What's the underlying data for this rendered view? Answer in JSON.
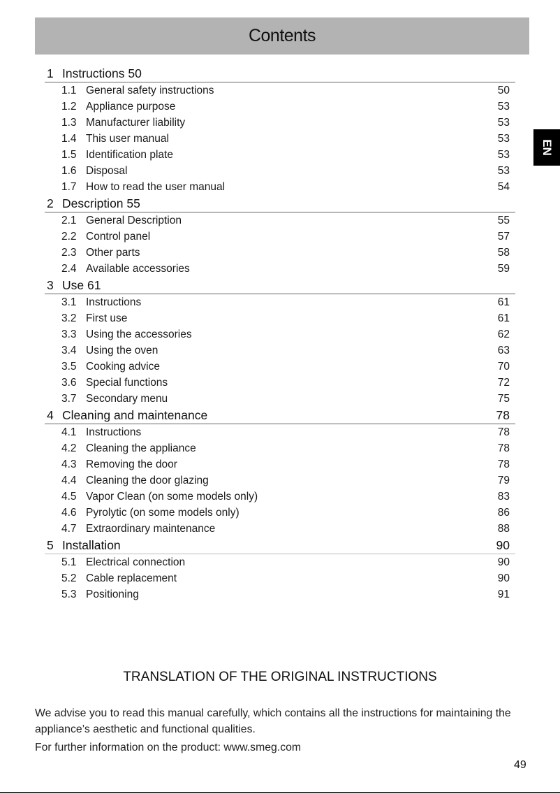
{
  "title": "Contents",
  "lang_tab": "EN",
  "sections": [
    {
      "num": "1",
      "title": "Instructions 50",
      "page": "",
      "entries": [
        {
          "num": "1.1",
          "title": "General safety instructions",
          "page": "50"
        },
        {
          "num": "1.2",
          "title": "Appliance purpose",
          "page": "53"
        },
        {
          "num": "1.3",
          "title": "Manufacturer liability",
          "page": "53"
        },
        {
          "num": "1.4",
          "title": "This user manual",
          "page": "53"
        },
        {
          "num": "1.5",
          "title": "Identification plate",
          "page": "53"
        },
        {
          "num": "1.6",
          "title": "Disposal",
          "page": "53"
        },
        {
          "num": "1.7",
          "title": "How to read the user manual",
          "page": "54"
        }
      ]
    },
    {
      "num": "2",
      "title": "Description 55",
      "page": "",
      "entries": [
        {
          "num": "2.1",
          "title": "General Description",
          "page": "55"
        },
        {
          "num": "2.2",
          "title": "Control panel",
          "page": "57"
        },
        {
          "num": "2.3",
          "title": "Other parts",
          "page": "58"
        },
        {
          "num": "2.4",
          "title": "Available accessories",
          "page": "59"
        }
      ]
    },
    {
      "num": "3",
      "title": "Use 61",
      "page": "",
      "entries": [
        {
          "num": "3.1",
          "title": "Instructions",
          "page": "61"
        },
        {
          "num": "3.2",
          "title": "First use",
          "page": "61"
        },
        {
          "num": "3.3",
          "title": "Using the accessories",
          "page": "62"
        },
        {
          "num": "3.4",
          "title": "Using the oven",
          "page": "63"
        },
        {
          "num": "3.5",
          "title": "Cooking advice",
          "page": "70"
        },
        {
          "num": "3.6",
          "title": "Special functions",
          "page": "72"
        },
        {
          "num": "3.7",
          "title": "Secondary menu",
          "page": "75"
        }
      ]
    },
    {
      "num": "4",
      "title": "Cleaning and maintenance",
      "page": "78",
      "entries": [
        {
          "num": "4.1",
          "title": "Instructions",
          "page": "78"
        },
        {
          "num": "4.2",
          "title": "Cleaning the appliance",
          "page": "78"
        },
        {
          "num": "4.3",
          "title": "Removing the door",
          "page": "78"
        },
        {
          "num": "4.4",
          "title": "Cleaning the door glazing",
          "page": "79"
        },
        {
          "num": "4.5",
          "title": "Vapor Clean (on some models only)",
          "page": "83"
        },
        {
          "num": "4.6",
          "title": "Pyrolytic (on some models only)",
          "page": "86"
        },
        {
          "num": "4.7",
          "title": "Extraordinary maintenance",
          "page": "88"
        }
      ]
    },
    {
      "num": "5",
      "title": "Installation",
      "page": "90",
      "entries": [
        {
          "num": "5.1",
          "title": "Electrical connection",
          "page": "90"
        },
        {
          "num": "5.2",
          "title": "Cable replacement",
          "page": "90"
        },
        {
          "num": "5.3",
          "title": "Positioning",
          "page": "91"
        }
      ]
    }
  ],
  "translation_heading": "TRANSLATION OF THE ORIGINAL INSTRUCTIONS",
  "paragraphs": [
    "We advise you to read this manual carefully, which contains all the instructions for maintaining the appliance’s aesthetic and functional qualities.",
    "For further information on the product: www.smeg.com"
  ],
  "page_number": "49"
}
